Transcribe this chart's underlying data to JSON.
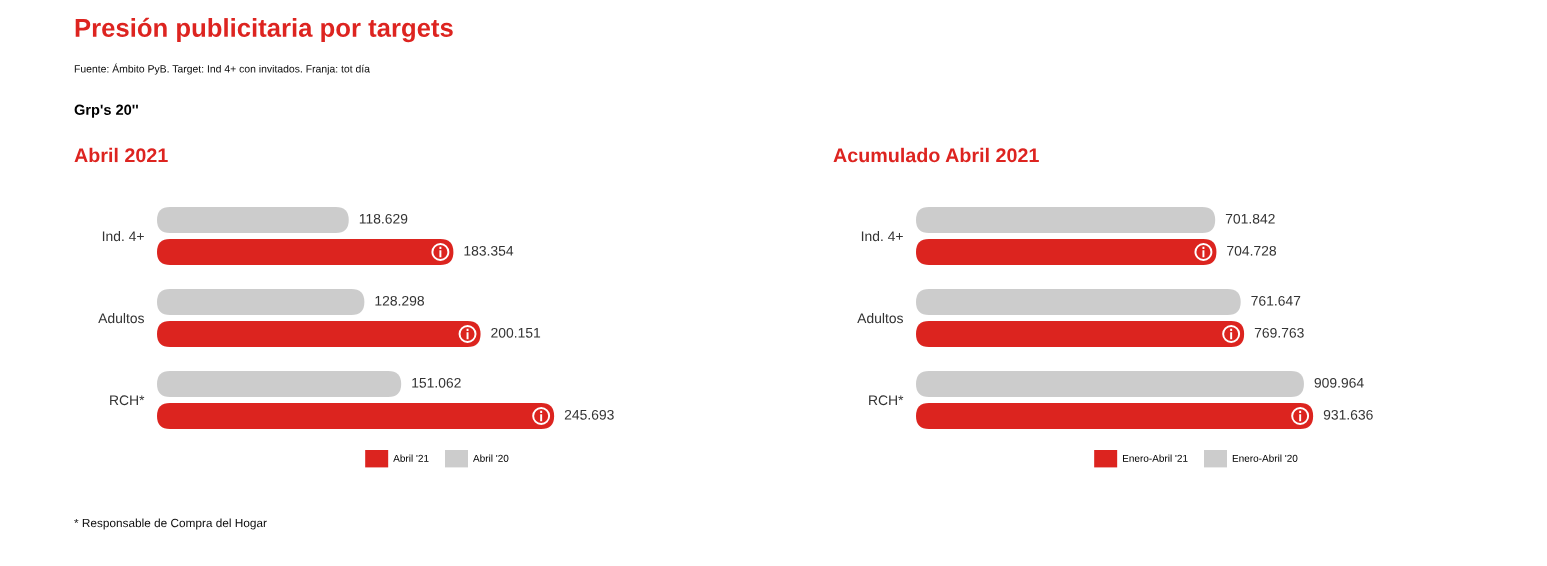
{
  "chart_data": [
    {
      "type": "other",
      "title": "Presión publicitaria por targets",
      "subtitle": "Fuente: Ámbito PyB. Target: Ind 4+ con invitados. Franja: tot día",
      "annotations": [
        "Grp's 20''"
      ]
    },
    {
      "type": "bar",
      "orientation": "horizontal",
      "title": "Abril 2021",
      "categories": [
        "Ind. 4+",
        "Adultos",
        "RCH*"
      ],
      "series": [
        {
          "name": "Abril '21",
          "color": "#dc241f",
          "values": [
            183354,
            200151,
            245693
          ],
          "value_labels": [
            "183.354",
            "200.151",
            "245.693"
          ]
        },
        {
          "name": "Abril '20",
          "color": "#cccccc",
          "values": [
            118629,
            128298,
            151062
          ],
          "value_labels": [
            "118.629",
            "128.298",
            "151.062"
          ]
        }
      ],
      "legend": "bottom",
      "tick_labels": "y",
      "annotations": [
        "* Responsable de Compra del Hogar"
      ]
    },
    {
      "type": "bar",
      "orientation": "horizontal",
      "title": "Acumulado Abril 2021",
      "categories": [
        "Ind. 4+",
        "Adultos",
        "RCH*"
      ],
      "series": [
        {
          "name": "Enero-Abril '21",
          "color": "#dc241f",
          "values": [
            704728,
            769763,
            931636
          ],
          "value_labels": [
            "704.728",
            "769.763",
            "931.636"
          ]
        },
        {
          "name": "Enero-Abril '20",
          "color": "#cccccc",
          "values": [
            701842,
            761647,
            909964
          ],
          "value_labels": [
            "701.842",
            "761.647",
            "909.964"
          ]
        }
      ],
      "legend": "bottom",
      "tick_labels": "y"
    }
  ]
}
